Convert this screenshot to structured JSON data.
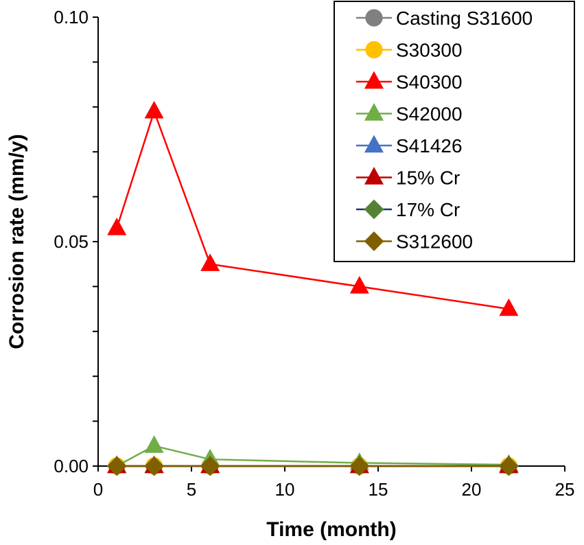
{
  "chart_data": {
    "type": "line",
    "xlabel": "Time (month)",
    "ylabel": "Corrosion rate (mm/y)",
    "xlim": [
      0,
      25
    ],
    "ylim": [
      0,
      0.1
    ],
    "x_ticks": [
      "0",
      "5",
      "10",
      "15",
      "20",
      "25"
    ],
    "y_ticks": [
      "0.00",
      "0.05",
      "0.10"
    ],
    "legend_position": "top-right",
    "series": [
      {
        "name": "Casting S31600",
        "color": "#808080",
        "marker": "circle",
        "x": [
          1,
          3,
          6,
          14,
          22
        ],
        "y": [
          0,
          0,
          0,
          0,
          0
        ]
      },
      {
        "name": "S30300",
        "color": "#FFC000",
        "marker": "circle",
        "x": [
          1,
          3,
          6,
          14,
          22
        ],
        "y": [
          0,
          0,
          0,
          0,
          0
        ]
      },
      {
        "name": "S40300",
        "color": "#FF0000",
        "marker": "triangle",
        "x": [
          1,
          3,
          6,
          14,
          22
        ],
        "y": [
          0.053,
          0.079,
          0.045,
          0.04,
          0.035
        ]
      },
      {
        "name": "S42000",
        "color": "#70AD47",
        "marker": "triangle",
        "x": [
          1,
          3,
          6,
          14,
          22
        ],
        "y": [
          0,
          0.0045,
          0.0015,
          0.0007,
          0.0003
        ]
      },
      {
        "name": "S41426",
        "color": "#4472C4",
        "marker": "triangle",
        "x": [
          1,
          3,
          6,
          14,
          22
        ],
        "y": [
          0,
          0,
          0,
          0,
          0
        ]
      },
      {
        "name": "15% Cr",
        "color": "#C00000",
        "marker": "triangle",
        "x": [
          1,
          3,
          6,
          14,
          22
        ],
        "y": [
          0,
          0,
          0,
          0,
          0
        ]
      },
      {
        "name": "17% Cr",
        "color": "#548235",
        "line_color": "#1F3864",
        "marker": "diamond",
        "x": [
          1,
          3,
          6,
          14,
          22
        ],
        "y": [
          0,
          0,
          0,
          0,
          0
        ]
      },
      {
        "name": "S312600",
        "color": "#7F6000",
        "marker": "diamond",
        "x": [
          1,
          3,
          6,
          14,
          22
        ],
        "y": [
          0,
          0,
          0,
          0,
          0
        ]
      }
    ]
  }
}
